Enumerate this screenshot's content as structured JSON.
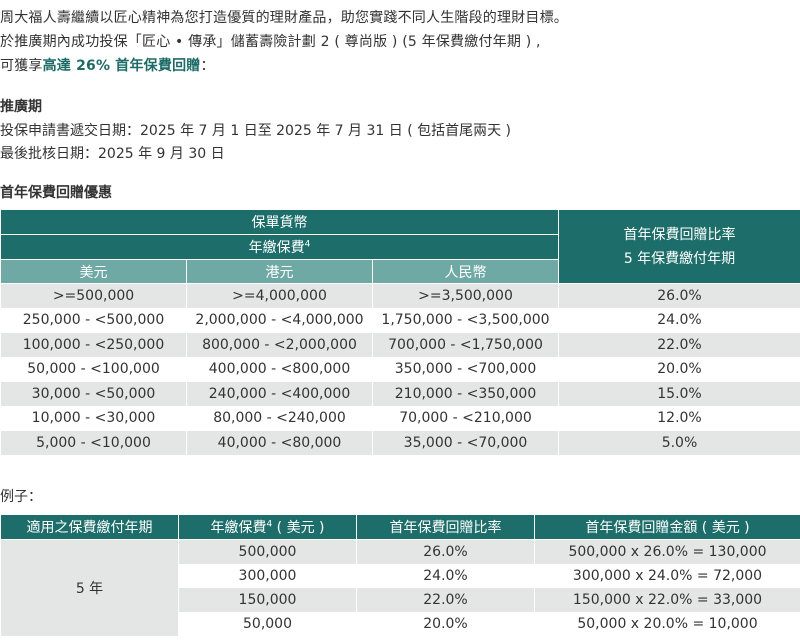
{
  "intro": {
    "line1": "周大福人壽繼續以匠心精神為您打造優質的理財產品，助您實踐不同人生階段的理財目標。",
    "line2": "於推廣期內成功投保「匠心 • 傳承」儲蓄壽險計劃 2 ( 尊尚版 ) (5 年保費繳付年期 ) ,",
    "line3_prefix": "可獲享",
    "line3_highlight": "高達 26% 首年保費回贈",
    "line3_suffix": "：",
    "highlight_color": "#1e6b66"
  },
  "promo": {
    "title": "推廣期",
    "application_date": "投保申請書遞交日期：2025 年 7 月 1 日至 2025 年 7 月 31 日 ( 包括首尾兩天 )",
    "approval_date": "最後批核日期：2025 年 9 月 30 日"
  },
  "rebate_section": {
    "title": "首年保費回贈優惠",
    "header_currency": "保單貨幣",
    "header_premium": "年繳保費",
    "header_premium_sup": "4",
    "col_usd": "美元",
    "col_hkd": "港元",
    "col_rmb": "人民幣",
    "header_rate_line1": "首年保費回贈比率",
    "header_rate_line2": "5 年保費繳付年期",
    "rows": [
      {
        "usd": ">=500,000",
        "hkd": ">=4,000,000",
        "rmb": ">=3,500,000",
        "rate": "26.0%"
      },
      {
        "usd": "250,000 - <500,000",
        "hkd": "2,000,000 - <4,000,000",
        "rmb": "1,750,000 - <3,500,000",
        "rate": "24.0%"
      },
      {
        "usd": "100,000 - <250,000",
        "hkd": "800,000 - <2,000,000",
        "rmb": "700,000 - <1,750,000",
        "rate": "22.0%"
      },
      {
        "usd": "50,000 - <100,000",
        "hkd": "400,000 - <800,000",
        "rmb": "350,000 - <700,000",
        "rate": "20.0%"
      },
      {
        "usd": "30,000 - <50,000",
        "hkd": "240,000 - <400,000",
        "rmb": "210,000 - <350,000",
        "rate": "15.0%"
      },
      {
        "usd": "10,000 - <30,000",
        "hkd": "80,000 - <240,000",
        "rmb": "70,000 - <210,000",
        "rate": "12.0%"
      },
      {
        "usd": "5,000 - <10,000",
        "hkd": "40,000 - <80,000",
        "rmb": "35,000 - <70,000",
        "rate": "5.0%"
      }
    ]
  },
  "example_section": {
    "label": "例子：",
    "headers": {
      "years": "適用之保費繳付年期",
      "premium": "年繳保費",
      "premium_sup": "4",
      "premium_suffix": " ( 美元 )",
      "rate": "首年保費回贈比率",
      "amount": "首年保費回贈金額 ( 美元 )"
    },
    "years_value": "5 年",
    "rows": [
      {
        "premium": "500,000",
        "rate": "26.0%",
        "amount": "500,000 x 26.0% = 130,000"
      },
      {
        "premium": "300,000",
        "rate": "24.0%",
        "amount": "300,000 x 24.0% = 72,000"
      },
      {
        "premium": "150,000",
        "rate": "22.0%",
        "amount": "150,000 x 22.0% = 33,000"
      },
      {
        "premium": "50,000",
        "rate": "20.0%",
        "amount": "50,000 x 20.0% = 10,000"
      }
    ]
  },
  "colors": {
    "header_dark": "#1d6e6a",
    "header_light": "#6fa9a5",
    "row_shade": "#e4e5e5"
  }
}
